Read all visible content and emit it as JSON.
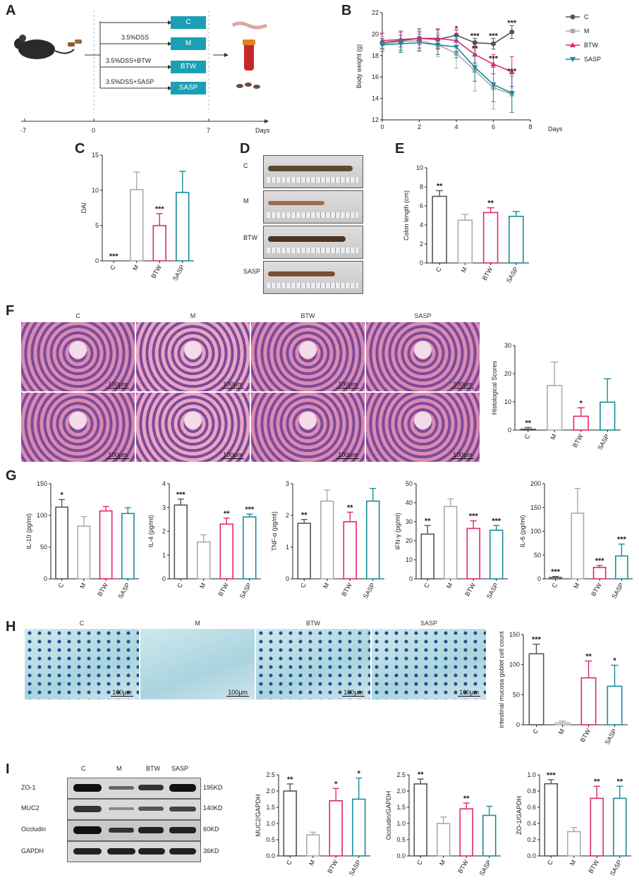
{
  "panel_letters": {
    "A": "A",
    "B": "B",
    "C": "C",
    "D": "D",
    "E": "E",
    "F": "F",
    "G": "G",
    "H": "H",
    "I": "I"
  },
  "schematic": {
    "groups": [
      "C",
      "M",
      "BTW",
      "SASP"
    ],
    "treatments": [
      "3.5%DSS",
      "3.5%DSS+BTW",
      "3.5%DSS+SASP"
    ],
    "timeline_ticks": [
      "-7",
      "0",
      "7"
    ],
    "timeline_label": "Days"
  },
  "colors": {
    "C": "#555555",
    "M": "#aaaaaa",
    "BTW": "#e0266f",
    "SASP": "#1a8c9c",
    "teal_box": "#1a9fb5"
  },
  "photo_D": {
    "labels": [
      "C",
      "M",
      "BTW",
      "SASP"
    ]
  },
  "histology_F": {
    "labels": [
      "C",
      "M",
      "BTW",
      "SASP"
    ],
    "scale": "100μm"
  },
  "alcian_H": {
    "labels": [
      "C",
      "M",
      "BTW",
      "SASP"
    ],
    "scale": "100μm"
  },
  "western_I": {
    "lanes": [
      "C",
      "M",
      "BTW",
      "SASP"
    ],
    "proteins": [
      "ZO-1",
      "MUC2",
      "Occludin",
      "GAPDH"
    ],
    "sizes": [
      "195KD",
      "140KD",
      "60KD",
      "36KD"
    ]
  },
  "chart_data": [
    {
      "id": "B",
      "type": "line",
      "xlabel": "Days",
      "ylabel": "Body weight (g)",
      "xlim": [
        0,
        8
      ],
      "ylim": [
        12,
        22
      ],
      "xticks": [
        "0",
        "2",
        "4",
        "6",
        "8"
      ],
      "yticks": [
        "12",
        "14",
        "16",
        "18",
        "20",
        "22"
      ],
      "x": [
        0,
        1,
        2,
        3,
        4,
        5,
        6,
        7
      ],
      "series": [
        {
          "name": "C",
          "values": [
            19.2,
            19.4,
            19.6,
            19.5,
            19.9,
            19.2,
            19.1,
            20.2
          ],
          "err": [
            0.6,
            0.9,
            0.9,
            0.9,
            0.5,
            0.4,
            0.5,
            0.6
          ]
        },
        {
          "name": "M",
          "values": [
            19.1,
            19.3,
            19.4,
            19.0,
            18.2,
            16.6,
            15.0,
            14.4
          ],
          "err": [
            0.7,
            1.0,
            0.9,
            1.1,
            1.4,
            1.9,
            2.0,
            1.7
          ]
        },
        {
          "name": "BTW",
          "values": [
            19.4,
            19.5,
            19.6,
            19.6,
            19.4,
            18.1,
            17.2,
            16.5
          ],
          "err": [
            0.7,
            0.7,
            0.6,
            0.9,
            1.0,
            0.8,
            0.9,
            1.4
          ]
        },
        {
          "name": "SASP",
          "values": [
            19.0,
            19.1,
            19.2,
            19.0,
            18.8,
            16.9,
            15.3,
            14.5
          ],
          "err": [
            0.6,
            0.8,
            0.8,
            0.9,
            1.0,
            1.3,
            1.6,
            1.8
          ]
        }
      ],
      "annotations": [
        {
          "x": 4,
          "y": 20.3,
          "text": "*"
        },
        {
          "x": 5,
          "y": 19.6,
          "text": "***"
        },
        {
          "x": 5,
          "y": 18.4,
          "text": "**"
        },
        {
          "x": 6,
          "y": 19.6,
          "text": "***"
        },
        {
          "x": 6,
          "y": 17.5,
          "text": "***"
        },
        {
          "x": 7,
          "y": 20.8,
          "text": "***"
        },
        {
          "x": 7,
          "y": 16.3,
          "text": "***"
        }
      ]
    },
    {
      "id": "C",
      "type": "bar",
      "categories": [
        "C",
        "M",
        "BTW",
        "SASP"
      ],
      "values": [
        0,
        10.1,
        5.0,
        9.7
      ],
      "err": [
        0,
        2.5,
        1.7,
        3.0
      ],
      "ylabel": "DAI",
      "ylim": [
        0,
        15
      ],
      "yticks": [
        "0",
        "5",
        "10",
        "15"
      ],
      "stars": [
        "***",
        "",
        "***",
        ""
      ]
    },
    {
      "id": "E",
      "type": "bar",
      "categories": [
        "C",
        "M",
        "BTW",
        "SASP"
      ],
      "values": [
        7.0,
        4.5,
        5.3,
        4.9
      ],
      "err": [
        0.6,
        0.6,
        0.5,
        0.5
      ],
      "ylabel": "Colon length (cm)",
      "ylim": [
        0,
        10
      ],
      "yticks": [
        "0",
        "2",
        "4",
        "6",
        "8",
        "10"
      ],
      "stars": [
        "**",
        "",
        "**",
        ""
      ]
    },
    {
      "id": "F",
      "type": "bar",
      "categories": [
        "C",
        "M",
        "BTW",
        "SASP"
      ],
      "values": [
        0.3,
        15.8,
        4.9,
        9.9
      ],
      "err": [
        0.6,
        8.3,
        3.0,
        8.3
      ],
      "ylabel": "Histological Scores",
      "ylim": [
        0,
        30
      ],
      "yticks": [
        "0",
        "10",
        "20",
        "30"
      ],
      "stars": [
        "**",
        "",
        "*",
        ""
      ]
    },
    {
      "id": "G1",
      "type": "bar",
      "categories": [
        "C",
        "M",
        "BTW",
        "SASP"
      ],
      "values": [
        113,
        83,
        107,
        103
      ],
      "err": [
        12,
        15,
        7,
        9
      ],
      "ylabel": "IL-10 (pg/ml)",
      "ylim": [
        0,
        150
      ],
      "yticks": [
        "0",
        "50",
        "100",
        "150"
      ],
      "stars": [
        "*",
        "",
        "",
        ""
      ]
    },
    {
      "id": "G2",
      "type": "bar",
      "categories": [
        "C",
        "M",
        "BTW",
        "SASP"
      ],
      "values": [
        3.1,
        1.55,
        2.3,
        2.6
      ],
      "err": [
        0.25,
        0.3,
        0.25,
        0.12
      ],
      "ylabel": "IL-4 (pg/ml)",
      "ylim": [
        0,
        4
      ],
      "yticks": [
        "0",
        "1",
        "2",
        "3",
        "4"
      ],
      "stars": [
        "***",
        "",
        "**",
        "***"
      ]
    },
    {
      "id": "G3",
      "type": "bar",
      "categories": [
        "C",
        "M",
        "BTW",
        "SASP"
      ],
      "values": [
        1.75,
        2.45,
        1.8,
        2.45
      ],
      "err": [
        0.12,
        0.35,
        0.3,
        0.4
      ],
      "ylabel": "TNF-α (pg/ml)",
      "ylim": [
        0,
        3
      ],
      "yticks": [
        "0",
        "1",
        "2",
        "3"
      ],
      "stars": [
        "**",
        "",
        "**",
        ""
      ]
    },
    {
      "id": "G4",
      "type": "bar",
      "categories": [
        "C",
        "M",
        "BTW",
        "SASP"
      ],
      "values": [
        23.5,
        38,
        26.5,
        25.5
      ],
      "err": [
        4.5,
        4,
        4,
        2.5
      ],
      "ylabel": "IFN-γ (pg/ml)",
      "ylim": [
        0,
        50
      ],
      "yticks": [
        "0",
        "10",
        "20",
        "30",
        "40",
        "50"
      ],
      "stars": [
        "**",
        "",
        "***",
        "***"
      ]
    },
    {
      "id": "G5",
      "type": "bar",
      "categories": [
        "C",
        "M",
        "BTW",
        "SASP"
      ],
      "values": [
        3,
        138,
        24,
        48
      ],
      "err": [
        2,
        52,
        4,
        25
      ],
      "ylabel": "IL-6 (pg/ml)",
      "ylim": [
        0,
        200
      ],
      "yticks": [
        "0",
        "50",
        "100",
        "150",
        "200"
      ],
      "stars": [
        "***",
        "",
        "***",
        "***"
      ]
    },
    {
      "id": "H",
      "type": "bar",
      "categories": [
        "C",
        "M",
        "BTW",
        "SASP"
      ],
      "values": [
        118,
        3,
        78,
        64
      ],
      "err": [
        16,
        3,
        28,
        35
      ],
      "ylabel": "intestinal mucosa goblet cell count",
      "ylim": [
        0,
        150
      ],
      "yticks": [
        "0",
        "50",
        "100",
        "150"
      ],
      "stars": [
        "***",
        "",
        "**",
        "*"
      ]
    },
    {
      "id": "I1",
      "type": "bar",
      "categories": [
        "C",
        "M",
        "BTW",
        "SASP"
      ],
      "values": [
        2.0,
        0.65,
        1.7,
        1.75
      ],
      "err": [
        0.22,
        0.08,
        0.38,
        0.65
      ],
      "ylabel": "MUC2/GAPDH",
      "ylim": [
        0,
        2.5
      ],
      "yticks": [
        "0.0",
        "0.5",
        "1.0",
        "1.5",
        "2.0",
        "2.5"
      ],
      "stars": [
        "**",
        "",
        "*",
        "*"
      ]
    },
    {
      "id": "I2",
      "type": "bar",
      "categories": [
        "C",
        "M",
        "BTW",
        "SASP"
      ],
      "values": [
        2.22,
        1.0,
        1.45,
        1.25
      ],
      "err": [
        0.15,
        0.2,
        0.18,
        0.28
      ],
      "ylabel": "Occludin/GAPDH",
      "ylim": [
        0,
        2.5
      ],
      "yticks": [
        "0.0",
        "0.5",
        "1.0",
        "1.5",
        "2.0",
        "2.5"
      ],
      "stars": [
        "**",
        "",
        "**",
        ""
      ]
    },
    {
      "id": "I3",
      "type": "bar",
      "categories": [
        "C",
        "M",
        "BTW",
        "SASP"
      ],
      "values": [
        0.89,
        0.3,
        0.71,
        0.71
      ],
      "err": [
        0.05,
        0.05,
        0.15,
        0.15
      ],
      "ylabel": "ZO-1/GAPDH",
      "ylim": [
        0,
        1.0
      ],
      "yticks": [
        "0.0",
        "0.2",
        "0.4",
        "0.6",
        "0.8",
        "1.0"
      ],
      "stars": [
        "***",
        "",
        "**",
        "**"
      ]
    }
  ]
}
